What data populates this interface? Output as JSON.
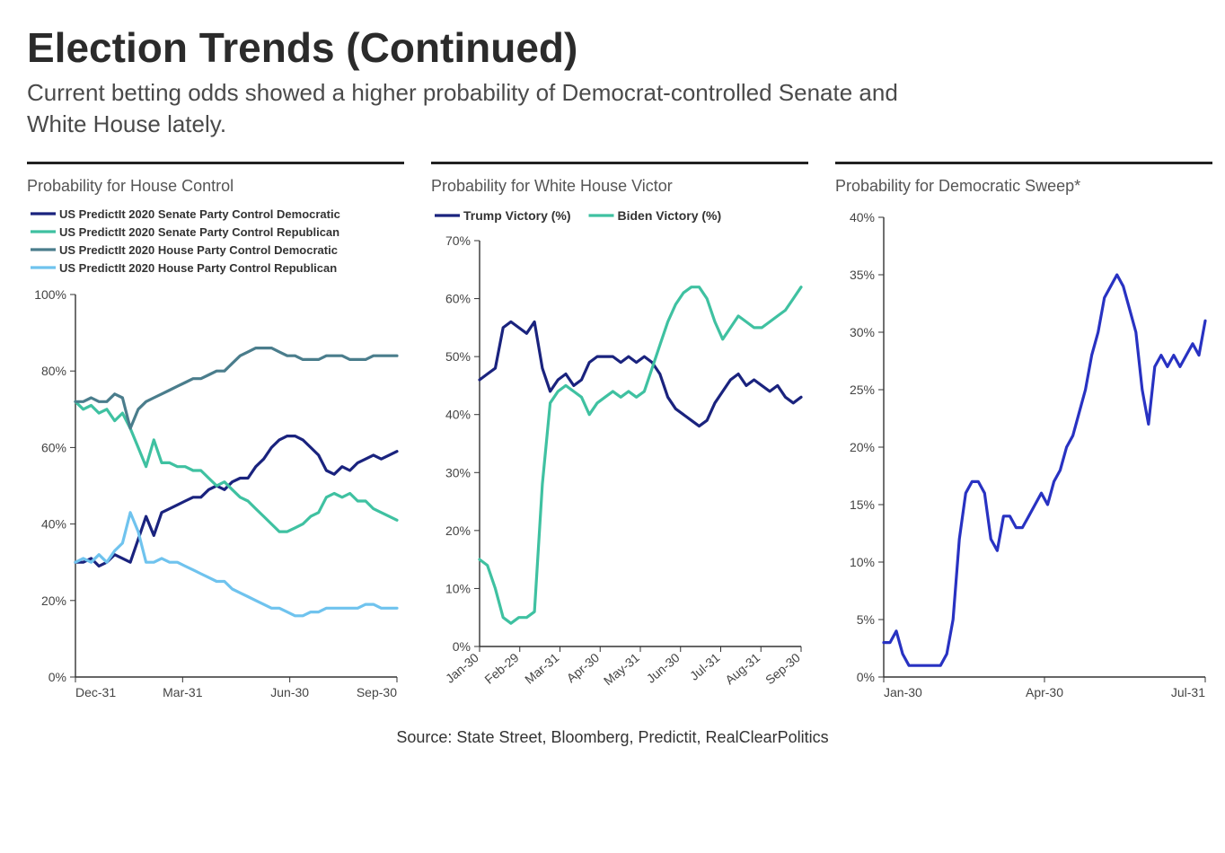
{
  "title": "Election Trends (Continued)",
  "subtitle": "Current betting odds showed a higher probability of Democrat-controlled Senate and White House lately.",
  "source": "Source: State Street, Bloomberg,  Predictit, RealClearPolitics",
  "shared_style": {
    "background": "#ffffff",
    "axis_color": "#333333",
    "tick_font_size": 14,
    "title_color": "#555555",
    "title_font_size": 18,
    "line_width": 3.2
  },
  "chart1": {
    "type": "line",
    "title": "Probability for House Control",
    "y": {
      "min": 0,
      "max": 100,
      "step": 20,
      "suffix": "%"
    },
    "x": {
      "labels": [
        "Dec-31",
        "Mar-31",
        "Jun-30",
        "Sep-30"
      ]
    },
    "legend": [
      {
        "label": "US PredictIt 2020 Senate Party Control Democratic",
        "color": "#1a237e"
      },
      {
        "label": "US PredictIt 2020 Senate Party Control Republican",
        "color": "#3fc1a1"
      },
      {
        "label": "US PredictIt 2020 House Party Control Democratic",
        "color": "#4a7d8c"
      },
      {
        "label": "US PredictIt 2020 House Party Control Republican",
        "color": "#6fc3ee"
      }
    ],
    "series": [
      {
        "color": "#1a237e",
        "values": [
          30,
          30,
          31,
          29,
          30,
          32,
          31,
          30,
          36,
          42,
          37,
          43,
          44,
          45,
          46,
          47,
          47,
          49,
          50,
          49,
          51,
          52,
          52,
          55,
          57,
          60,
          62,
          63,
          63,
          62,
          60,
          58,
          54,
          53,
          55,
          54,
          56,
          57,
          58,
          57,
          58,
          59
        ]
      },
      {
        "color": "#3fc1a1",
        "values": [
          72,
          70,
          71,
          69,
          70,
          67,
          69,
          65,
          60,
          55,
          62,
          56,
          56,
          55,
          55,
          54,
          54,
          52,
          50,
          51,
          49,
          47,
          46,
          44,
          42,
          40,
          38,
          38,
          39,
          40,
          42,
          43,
          47,
          48,
          47,
          48,
          46,
          46,
          44,
          43,
          42,
          41
        ]
      },
      {
        "color": "#4a7d8c",
        "values": [
          72,
          72,
          73,
          72,
          72,
          74,
          73,
          65,
          70,
          72,
          73,
          74,
          75,
          76,
          77,
          78,
          78,
          79,
          80,
          80,
          82,
          84,
          85,
          86,
          86,
          86,
          85,
          84,
          84,
          83,
          83,
          83,
          84,
          84,
          84,
          83,
          83,
          83,
          84,
          84,
          84,
          84
        ]
      },
      {
        "color": "#6fc3ee",
        "values": [
          30,
          31,
          30,
          32,
          30,
          33,
          35,
          43,
          38,
          30,
          30,
          31,
          30,
          30,
          29,
          28,
          27,
          26,
          25,
          25,
          23,
          22,
          21,
          20,
          19,
          18,
          18,
          17,
          16,
          16,
          17,
          17,
          18,
          18,
          18,
          18,
          18,
          19,
          19,
          18,
          18,
          18
        ]
      }
    ]
  },
  "chart2": {
    "type": "line",
    "title": "Probability for White House Victor",
    "y": {
      "min": 0,
      "max": 70,
      "step": 10,
      "suffix": "%"
    },
    "x": {
      "labels": [
        "Jan-30",
        "Feb-29",
        "Mar-31",
        "Apr-30",
        "May-31",
        "Jun-30",
        "Jul-31",
        "Aug-31",
        "Sep-30"
      ],
      "rotate": true
    },
    "legend": [
      {
        "label": "Trump Victory (%)",
        "color": "#1a237e"
      },
      {
        "label": "Biden Victory (%)",
        "color": "#3fc1a1"
      }
    ],
    "series": [
      {
        "color": "#1a237e",
        "values": [
          46,
          47,
          48,
          55,
          56,
          55,
          54,
          56,
          48,
          44,
          46,
          47,
          45,
          46,
          49,
          50,
          50,
          50,
          49,
          50,
          49,
          50,
          49,
          47,
          43,
          41,
          40,
          39,
          38,
          39,
          42,
          44,
          46,
          47,
          45,
          46,
          45,
          44,
          45,
          43,
          42,
          43
        ]
      },
      {
        "color": "#3fc1a1",
        "values": [
          15,
          14,
          10,
          5,
          4,
          5,
          5,
          6,
          28,
          42,
          44,
          45,
          44,
          43,
          40,
          42,
          43,
          44,
          43,
          44,
          43,
          44,
          48,
          52,
          56,
          59,
          61,
          62,
          62,
          60,
          56,
          53,
          55,
          57,
          56,
          55,
          55,
          56,
          57,
          58,
          60,
          62
        ]
      }
    ]
  },
  "chart3": {
    "type": "line",
    "title": "Probability for Democratic Sweep*",
    "y": {
      "min": 0,
      "max": 40,
      "step": 5,
      "suffix": "%"
    },
    "x": {
      "labels": [
        "Jan-30",
        "Apr-30",
        "Jul-31"
      ]
    },
    "legend": [],
    "series": [
      {
        "color": "#2832c2",
        "values": [
          3,
          3,
          4,
          2,
          1,
          1,
          1,
          1,
          1,
          1,
          2,
          5,
          12,
          16,
          17,
          17,
          16,
          12,
          11,
          14,
          14,
          13,
          13,
          14,
          15,
          16,
          15,
          17,
          18,
          20,
          21,
          23,
          25,
          28,
          30,
          33,
          34,
          35,
          34,
          32,
          30,
          25,
          22,
          27,
          28,
          27,
          28,
          27,
          28,
          29,
          28,
          31
        ]
      }
    ]
  }
}
